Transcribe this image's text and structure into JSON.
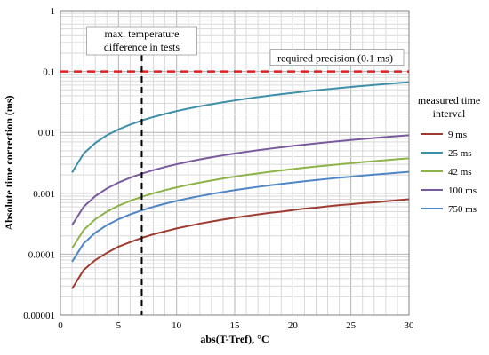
{
  "chart_data": {
    "type": "line",
    "title": "",
    "xlabel": "abs(T-Tref), °C",
    "ylabel": "Absolute time correction (ms)",
    "x_ticks": [
      "0",
      "5",
      "10",
      "15",
      "20",
      "25",
      "30"
    ],
    "y_ticks": [
      "0.00001",
      "0.0001",
      "0.001",
      "0.01",
      "0.1",
      "1"
    ],
    "xlim": [
      0,
      30
    ],
    "ylim": [
      1e-05,
      1
    ],
    "y_scale": "log",
    "grid": true,
    "legend_title": [
      "measured time",
      "interval"
    ],
    "legend_position": "right",
    "x": [
      1,
      2,
      3,
      4,
      5,
      6,
      7,
      8,
      9,
      10,
      11,
      12,
      13,
      14,
      15,
      16,
      17,
      18,
      19,
      20,
      21,
      22,
      23,
      24,
      25,
      26,
      27,
      28,
      29,
      30
    ],
    "series": [
      {
        "name": "9 ms",
        "color": "#9E3B30",
        "values": [
          2.7e-05,
          5.5e-05,
          8e-05,
          0.000105,
          0.000133,
          0.000158,
          0.000185,
          0.000212,
          0.000237,
          0.000265,
          0.00029,
          0.000318,
          0.000344,
          0.00037,
          0.000397,
          0.000423,
          0.00045,
          0.000476,
          0.0005,
          0.00053,
          0.00056,
          0.00058,
          0.00061,
          0.00064,
          0.00066,
          0.00069,
          0.00071,
          0.00074,
          0.00077,
          0.0008
        ]
      },
      {
        "name": "25 ms",
        "color": "#3E8FA8",
        "values": [
          0.0022,
          0.0045,
          0.0067,
          0.009,
          0.0112,
          0.0134,
          0.0157,
          0.0179,
          0.0201,
          0.0224,
          0.0246,
          0.0268,
          0.029,
          0.0313,
          0.0335,
          0.0357,
          0.038,
          0.0402,
          0.0424,
          0.0447,
          0.0469,
          0.0491,
          0.0513,
          0.0535,
          0.0558,
          0.058,
          0.0602,
          0.0624,
          0.0646,
          0.0668
        ]
      },
      {
        "name": "42 ms",
        "color": "#8DB348",
        "values": [
          0.000125,
          0.00025,
          0.000375,
          0.0005,
          0.000625,
          0.00075,
          0.000875,
          0.001,
          0.001125,
          0.00125,
          0.001375,
          0.0015,
          0.001625,
          0.00175,
          0.001875,
          0.002,
          0.002125,
          0.00225,
          0.002375,
          0.0025,
          0.002625,
          0.00275,
          0.002875,
          0.003,
          0.003125,
          0.00325,
          0.003375,
          0.0035,
          0.003625,
          0.00375
        ]
      },
      {
        "name": "100 ms",
        "color": "#7A5A9E",
        "values": [
          0.0003,
          0.0006,
          0.0009,
          0.0012,
          0.0015,
          0.0018,
          0.0021,
          0.0024,
          0.0027,
          0.003,
          0.0033,
          0.0036,
          0.0039,
          0.0042,
          0.0045,
          0.0048,
          0.0051,
          0.0054,
          0.0057,
          0.006,
          0.0063,
          0.0066,
          0.0069,
          0.0072,
          0.0075,
          0.0078,
          0.0081,
          0.0084,
          0.0087,
          0.009
        ]
      },
      {
        "name": "750 ms",
        "color": "#4F86C6",
        "values": [
          7.5e-05,
          0.00015,
          0.000225,
          0.0003,
          0.000375,
          0.00045,
          0.000525,
          0.0006,
          0.000675,
          0.00075,
          0.000825,
          0.0009,
          0.000975,
          0.00105,
          0.001125,
          0.0012,
          0.001275,
          0.00135,
          0.001425,
          0.0015,
          0.001575,
          0.00165,
          0.001725,
          0.0018,
          0.001875,
          0.00195,
          0.002025,
          0.0021,
          0.002175,
          0.00225
        ]
      }
    ],
    "reference_lines": [
      {
        "orientation": "horizontal",
        "value": 0.1,
        "label": "required precision (0.1 ms)",
        "color": "#E02020"
      },
      {
        "orientation": "vertical",
        "value": 7,
        "label": [
          "max. temperature",
          "difference in tests"
        ],
        "color": "#000000"
      }
    ]
  }
}
